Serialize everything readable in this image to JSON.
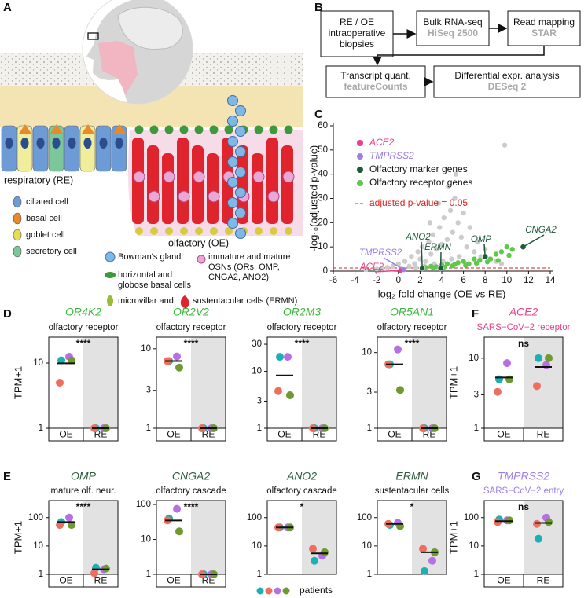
{
  "panel_labels": [
    "A",
    "B",
    "C",
    "D",
    "E",
    "F",
    "G"
  ],
  "illustration": {
    "respiratory": "respiratory (RE)",
    "olfactory": "olfactory (OE)",
    "re_legend": [
      "ciliated cell",
      "basal cell",
      "goblet cell",
      "secretory cell"
    ],
    "bowman": "Bowman's gland",
    "basal": [
      "horizontal and",
      "globose basal cells"
    ],
    "microvillar": "microvillar and",
    "sustentacular": "sustentacular cells (ERMN)",
    "osn": [
      "immature and mature",
      "OSNs (ORs, OMP,",
      "CNGA2, ANO2)"
    ]
  },
  "workflow": [
    {
      "lines": [
        "RE / OE",
        "intraoperative",
        "biopsies"
      ]
    },
    {
      "lines": [
        "Bulk RNA-seq"
      ],
      "tool": "HiSeq 2500"
    },
    {
      "lines": [
        "Read mapping"
      ],
      "tool": "STAR"
    },
    {
      "lines": [
        "Transcript quant."
      ],
      "tool": "featureCounts"
    },
    {
      "lines": [
        "Differential expr. analysis"
      ],
      "tool": "DESeq 2"
    }
  ],
  "patients": {
    "label": "patients",
    "colors": [
      "#1bb0b5",
      "#ef6f5e",
      "#b86fe6",
      "#6e9a30"
    ]
  },
  "chart_data": [
    {
      "type": "scatter",
      "xlabel": "log₂ fold change (OE vs RE)",
      "ylabel": "-log₁₀(adjusted p-value)",
      "xlim": [
        -6,
        14
      ],
      "xticks": [
        -6,
        -4,
        -2,
        0,
        2,
        4,
        6,
        8,
        10,
        12,
        14
      ],
      "ylim": [
        0,
        60
      ],
      "yticks": [
        0,
        10,
        20,
        30,
        40,
        50,
        60
      ],
      "hline": {
        "value": 1.3,
        "label": "adjusted p-value = 0.05",
        "color": "#e02020"
      },
      "series": [
        {
          "color": "#cccccc",
          "x": [
            -1.5,
            -1,
            -0.5,
            0,
            0.3,
            0.6,
            1,
            1.2,
            1.5,
            1.8,
            2,
            2.2,
            2.5,
            2.8,
            3,
            3.2,
            3.5,
            3.8,
            4,
            4.2,
            4.5,
            4.8,
            5,
            5.2,
            5.5,
            5.8,
            6,
            6.3,
            6.6,
            7,
            7.3,
            7.6,
            8,
            8.4,
            9,
            9.5,
            1.6,
            2.4,
            3.3,
            4.1,
            4.9,
            5.6,
            6.2,
            3.7,
            4.6,
            5.3,
            2.9,
            -2,
            -3,
            9.8
          ],
          "values": [
            1,
            1.5,
            2,
            3,
            1,
            4,
            2,
            6,
            3,
            8,
            5,
            10,
            4,
            12,
            7,
            15,
            9,
            18,
            11,
            22,
            13,
            25,
            16,
            30,
            20,
            14,
            24,
            10,
            18,
            8,
            12,
            6,
            9,
            5,
            4,
            3,
            1.5,
            2,
            3,
            4,
            5,
            6,
            3,
            28,
            35,
            40,
            20,
            0.8,
            0.6,
            52
          ]
        },
        {
          "name": "Olfactory receptor genes",
          "color": "#5ec94a",
          "x": [
            2.5,
            3,
            3.5,
            4,
            4.5,
            5,
            5.5,
            6,
            6.5,
            7,
            7.5,
            8,
            8.5,
            9,
            9.5,
            10,
            10.5,
            3.2,
            4.2,
            5.2,
            6.2,
            7.2,
            8.2,
            9.2,
            10.2
          ],
          "values": [
            1.5,
            2,
            1.8,
            2.5,
            3,
            2.2,
            3.5,
            4,
            3,
            5,
            4.5,
            6,
            5,
            7,
            8,
            10,
            9,
            1.4,
            1.6,
            2.8,
            2.4,
            3.2,
            3.8,
            4.4,
            6.5
          ]
        },
        {
          "name": "Olfactory marker genes",
          "color": "#1e5a3a",
          "x": [
            2.2,
            3.9,
            8.0,
            11.5
          ],
          "values": [
            1.2,
            1.2,
            6,
            10
          ],
          "point_labels": [
            "ANO2",
            "ERMN",
            "OMP",
            "CNGA2"
          ]
        },
        {
          "name": "ACE2",
          "color": "#e8418a",
          "x": [
            0.2
          ],
          "values": [
            0.3
          ]
        },
        {
          "name": "TMPRSS2",
          "color": "#9b7ee8",
          "x": [
            0.5
          ],
          "values": [
            0.6
          ]
        }
      ]
    },
    {
      "type": "dot",
      "title": "OR4K2",
      "title_color": "#3cb83c",
      "subtitle": "olfactory receptor",
      "ylabel": "TPM+1",
      "categories": [
        "OE",
        "RE"
      ],
      "values": [
        [
          11,
          5,
          12.5,
          11
        ],
        [
          1,
          1,
          1,
          1
        ]
      ],
      "means": [
        9.9,
        1
      ],
      "significance": "****",
      "log_y": true,
      "ylim": [
        1,
        25
      ],
      "yticks": [
        1,
        10
      ]
    },
    {
      "type": "dot",
      "title": "OR2V2",
      "title_color": "#3cb83c",
      "subtitle": "olfactory receptor",
      "categories": [
        "OE",
        "RE"
      ],
      "values": [
        [
          7,
          7,
          8,
          5.8
        ],
        [
          1,
          1,
          1,
          1
        ]
      ],
      "means": [
        7,
        1
      ],
      "significance": "****",
      "log_y": true,
      "ylim": [
        1,
        14
      ],
      "yticks": [
        1,
        3,
        10
      ]
    },
    {
      "type": "dot",
      "title": "OR2M3",
      "title_color": "#3cb83c",
      "subtitle": "olfactory receptor",
      "categories": [
        "OE",
        "RE"
      ],
      "values": [
        [
          18,
          4.5,
          18,
          3.8
        ],
        [
          1,
          1,
          1,
          1
        ]
      ],
      "means": [
        8.5,
        1
      ],
      "significance": "****",
      "log_y": true,
      "ylim": [
        1,
        40
      ],
      "yticks": [
        1,
        3,
        10,
        30
      ]
    },
    {
      "type": "dot",
      "title": "OR5AN1",
      "title_color": "#3cb83c",
      "subtitle": "olfactory receptor",
      "categories": [
        "OE",
        "RE"
      ],
      "values": [
        [
          7,
          7,
          11,
          3.2
        ],
        [
          1,
          1,
          1,
          1
        ]
      ],
      "means": [
        7,
        1
      ],
      "significance": "****",
      "log_y": true,
      "ylim": [
        1,
        16
      ],
      "yticks": [
        1,
        3,
        10
      ]
    },
    {
      "type": "dot",
      "title": "ACE2",
      "title_color": "#e8418a",
      "subtitle": "SARS−CoV−2 receptor",
      "subtitle_color": "#e8418a",
      "ylabel": "TPM+1",
      "categories": [
        "OE",
        "RE"
      ],
      "values": [
        [
          5,
          3.3,
          8.5,
          5
        ],
        [
          10,
          4,
          8,
          10
        ]
      ],
      "means": [
        5.3,
        7.5
      ],
      "significance": "ns",
      "log_y": true,
      "ylim": [
        1,
        20
      ],
      "yticks": [
        1,
        3,
        10
      ]
    },
    {
      "type": "dot",
      "title": "OMP",
      "title_color": "#2d5e3e",
      "subtitle": "mature olf. neur.",
      "ylabel": "TPM+1",
      "categories": [
        "OE",
        "RE"
      ],
      "values": [
        [
          70,
          55,
          100,
          55
        ],
        [
          1.7,
          1.1,
          1.5,
          1.6
        ]
      ],
      "means": [
        70,
        1.5
      ],
      "significance": "****",
      "log_y": true,
      "ylim": [
        1,
        400
      ],
      "yticks": [
        1,
        10,
        100
      ]
    },
    {
      "type": "dot",
      "title": "CNGA2",
      "title_color": "#2d5e3e",
      "subtitle": "olfactory cascade",
      "categories": [
        "OE",
        "RE"
      ],
      "values": [
        [
          40,
          35,
          75,
          17
        ],
        [
          1,
          1,
          1,
          1
        ]
      ],
      "means": [
        35,
        1
      ],
      "significance": "****",
      "log_y": true,
      "ylim": [
        1,
        130
      ],
      "yticks": [
        1,
        10,
        100
      ]
    },
    {
      "type": "dot",
      "title": "ANO2",
      "title_color": "#2d5e3e",
      "subtitle": "olfactory cascade",
      "values": [
        [
          45,
          45,
          45,
          45
        ],
        [
          3,
          8,
          4.5,
          6
        ]
      ],
      "means": [
        45,
        5.5
      ],
      "significance": "*",
      "log_y": true,
      "ylim": [
        1,
        400
      ],
      "yticks": [
        1,
        10,
        100
      ]
    },
    {
      "type": "dot",
      "title": "ERMN",
      "title_color": "#2d5e3e",
      "subtitle": "sustentacular cells",
      "values": [
        [
          55,
          60,
          65,
          50
        ],
        [
          1.3,
          8,
          3,
          6
        ]
      ],
      "means": [
        60,
        6
      ],
      "significance": "*",
      "log_y": true,
      "ylim": [
        1,
        400
      ],
      "yticks": [
        1,
        10,
        100
      ]
    },
    {
      "type": "dot",
      "title": "TMPRSS2",
      "title_color": "#9b7ee8",
      "subtitle": "SARS−CoV−2 entry",
      "subtitle_color": "#9b7ee8",
      "ylabel": "TPM+1",
      "categories": [
        "OE",
        "RE"
      ],
      "values": [
        [
          85,
          70,
          80,
          80
        ],
        [
          18,
          60,
          100,
          70
        ]
      ],
      "means": [
        75,
        65
      ],
      "significance": "ns",
      "log_y": true,
      "ylim": [
        1,
        400
      ],
      "yticks": [
        1,
        10,
        100
      ]
    }
  ]
}
